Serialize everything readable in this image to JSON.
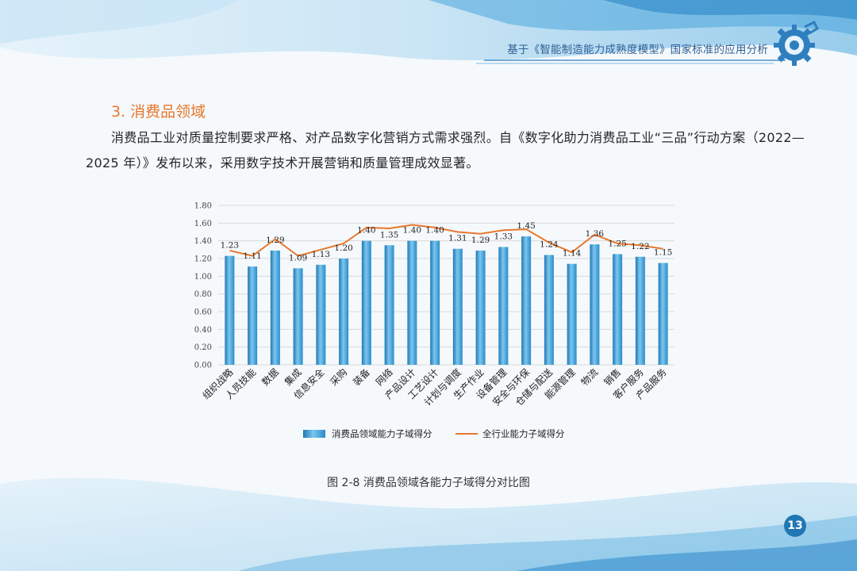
{
  "header": {
    "title": "基于《智能制造能力成熟度模型》国家标准的应用分析"
  },
  "section": {
    "title": "3. 消费品领域"
  },
  "body": {
    "paragraph": "消费品工业对质量控制要求严格、对产品数字化营销方式需求强烈。自《数字化助力消费品工业“三品”行动方案（2022—2025 年）》发布以来，采用数字技术开展营销和质量管理成效显著。"
  },
  "figure": {
    "caption": "图 2-8  消费品领域各能力子域得分对比图"
  },
  "page": {
    "number": "13"
  },
  "colors": {
    "bar": "#3a9fd6",
    "line": "#e8772e",
    "accent": "#e8772e",
    "header": "#2f5f96"
  },
  "icons": {
    "header": "gear-robot-icon"
  },
  "chart_data": {
    "type": "bar",
    "title": "",
    "xlabel": "",
    "ylabel": "",
    "ylim": [
      0,
      1.8
    ],
    "yticks": [
      "0.00",
      "0.20",
      "0.40",
      "0.60",
      "0.80",
      "1.00",
      "1.20",
      "1.40",
      "1.60",
      "1.80"
    ],
    "grid": true,
    "legend_position": "bottom",
    "categories": [
      "组织战略",
      "人员技能",
      "数据",
      "集成",
      "信息安全",
      "采购",
      "装备",
      "网络",
      "产品设计",
      "工艺设计",
      "计划与调度",
      "生产作业",
      "设备管理",
      "安全与环保",
      "仓储与配送",
      "能源管理",
      "物流",
      "销售",
      "客户服务",
      "产品服务"
    ],
    "series": [
      {
        "name": "消费品领域能力子域得分",
        "type": "bar",
        "values": [
          1.23,
          1.11,
          1.29,
          1.09,
          1.13,
          1.2,
          1.4,
          1.35,
          1.4,
          1.4,
          1.31,
          1.29,
          1.33,
          1.45,
          1.24,
          1.14,
          1.36,
          1.25,
          1.22,
          1.15
        ],
        "labels": [
          "1.23",
          "1.11",
          "1.29",
          "1.09",
          "1.13",
          "1.20",
          "1.40",
          "1.35",
          "1.40",
          "1.40",
          "1.31",
          "1.29",
          "1.33",
          "1.45",
          "1.24",
          "1.14",
          "1.36",
          "1.25",
          "1.22",
          "1.15"
        ]
      },
      {
        "name": "全行业能力子域得分",
        "type": "line",
        "values": [
          1.29,
          1.23,
          1.42,
          1.23,
          1.3,
          1.37,
          1.55,
          1.54,
          1.58,
          1.55,
          1.5,
          1.48,
          1.52,
          1.53,
          1.38,
          1.27,
          1.47,
          1.37,
          1.35,
          1.31
        ]
      }
    ]
  }
}
